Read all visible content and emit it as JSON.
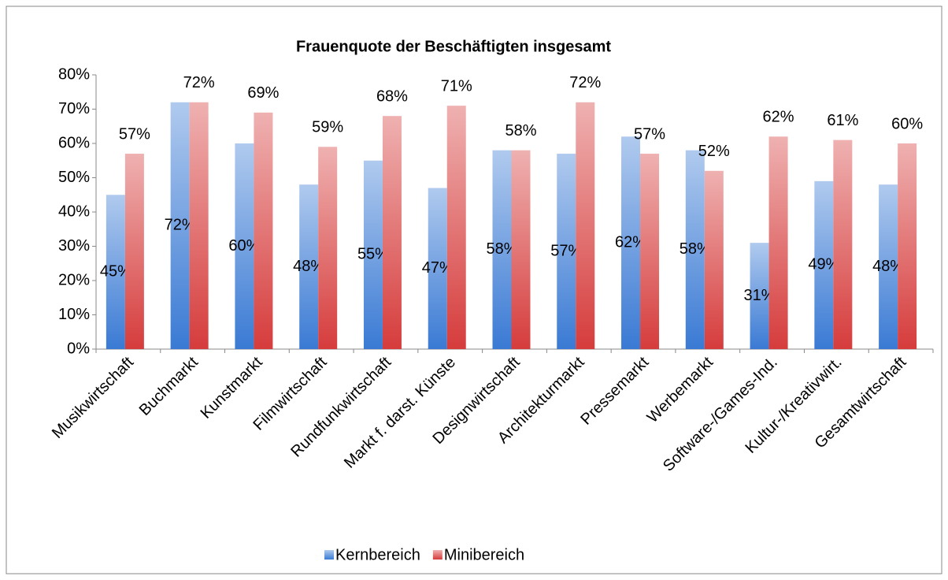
{
  "chart_data": {
    "type": "bar",
    "title": "Frauenquote der Beschäftigten insgesamt",
    "categories": [
      "Musikwirtschaft",
      "Buchmarkt",
      "Kunstmarkt",
      "Filmwirtschaft",
      "Rundfunkwirtschaft",
      "Markt f. darst. Künste",
      "Designwirtschaft",
      "Architekturmarkt",
      "Pressemarkt",
      "Werbemarkt",
      "Software-/Games-Ind.",
      "Kultur-/Kreativwirt.",
      "Gesamtwirtschaft"
    ],
    "series": [
      {
        "name": "Kernbereich",
        "color": "#3a7ad4",
        "values": [
          45,
          72,
          60,
          48,
          55,
          47,
          58,
          57,
          62,
          58,
          31,
          49,
          48
        ],
        "value_labels": [
          "45%",
          "72%",
          "60%",
          "48%",
          "55%",
          "47%",
          "58%",
          "57%",
          "62%",
          "58%",
          "31%",
          "49%",
          "48%"
        ]
      },
      {
        "name": "Minibereich",
        "color": "#d63c3c",
        "values": [
          57,
          72,
          69,
          59,
          68,
          71,
          58,
          72,
          57,
          52,
          62,
          61,
          60
        ],
        "value_labels": [
          "57%",
          "72%",
          "69%",
          "59%",
          "68%",
          "71%",
          "58%",
          "72%",
          "57%",
          "52%",
          "62%",
          "61%",
          "60%"
        ]
      }
    ],
    "ylim": [
      0,
      80
    ],
    "yticks": [
      {
        "value": 0,
        "label": "0%"
      },
      {
        "value": 10,
        "label": "10%"
      },
      {
        "value": 20,
        "label": "20%"
      },
      {
        "value": 30,
        "label": "30%"
      },
      {
        "value": 40,
        "label": "40%"
      },
      {
        "value": 50,
        "label": "50%"
      },
      {
        "value": 60,
        "label": "60%"
      },
      {
        "value": 70,
        "label": "70%"
      },
      {
        "value": 80,
        "label": "80%"
      }
    ],
    "legend": "bottom"
  }
}
